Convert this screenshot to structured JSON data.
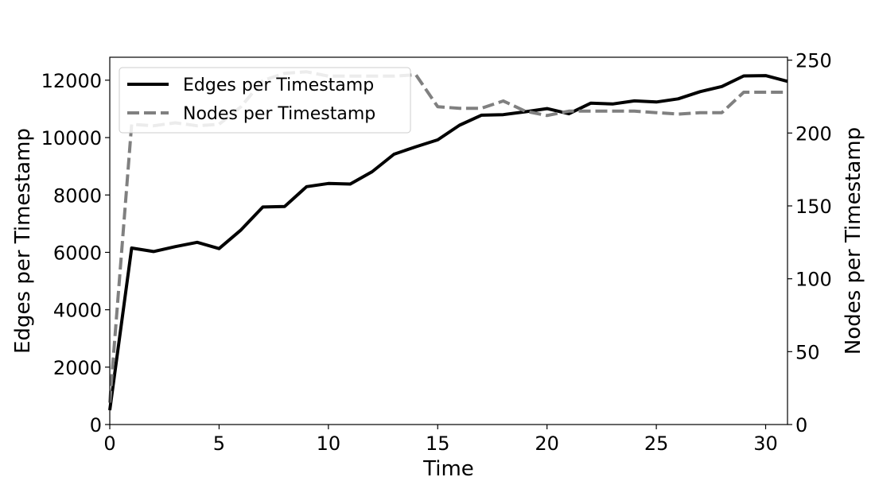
{
  "chart_data": {
    "type": "line",
    "xlabel": "Time",
    "ylabel_left": "Edges per Timestamp",
    "ylabel_right": "Nodes per Timestamp",
    "xlim": [
      0,
      31
    ],
    "ylim_left": [
      0,
      12800
    ],
    "ylim_right": [
      0,
      252
    ],
    "x_ticks": [
      0,
      5,
      10,
      15,
      20,
      25,
      30
    ],
    "y_left_ticks": [
      0,
      2000,
      4000,
      6000,
      8000,
      10000,
      12000
    ],
    "y_right_ticks": [
      0,
      50,
      100,
      150,
      200,
      250
    ],
    "grid": false,
    "legend_position": "top-left",
    "series": [
      {
        "name": "Edges per Timestamp",
        "axis": "left",
        "color": "#000000",
        "style": "solid",
        "x": [
          0,
          1,
          2,
          3,
          4,
          5,
          6,
          7,
          8,
          9,
          10,
          11,
          12,
          13,
          14,
          15,
          16,
          17,
          18,
          19,
          20,
          21,
          22,
          23,
          24,
          25,
          26,
          27,
          28,
          29,
          30,
          31
        ],
        "values": [
          500,
          6150,
          6030,
          6200,
          6350,
          6130,
          6780,
          7580,
          7600,
          8290,
          8400,
          8380,
          8810,
          9420,
          9680,
          9920,
          10430,
          10780,
          10800,
          10900,
          11010,
          10830,
          11200,
          11170,
          11280,
          11240,
          11350,
          11600,
          11780,
          12150,
          12160,
          11960
        ]
      },
      {
        "name": "Nodes per Timestamp",
        "axis": "right",
        "color": "#808080",
        "style": "dashed",
        "x": [
          0,
          1,
          2,
          3,
          4,
          5,
          6,
          7,
          8,
          9,
          10,
          11,
          12,
          13,
          14,
          15,
          16,
          17,
          18,
          19,
          20,
          21,
          22,
          23,
          24,
          25,
          26,
          27,
          28,
          29,
          30,
          31
        ],
        "values": [
          15,
          206,
          205,
          207,
          205,
          206,
          218,
          236,
          241,
          242,
          239,
          239,
          239,
          239,
          240,
          218,
          217,
          217,
          222,
          215,
          212,
          215,
          215,
          215,
          215,
          214,
          213,
          214,
          214,
          228,
          228,
          228
        ]
      }
    ]
  }
}
